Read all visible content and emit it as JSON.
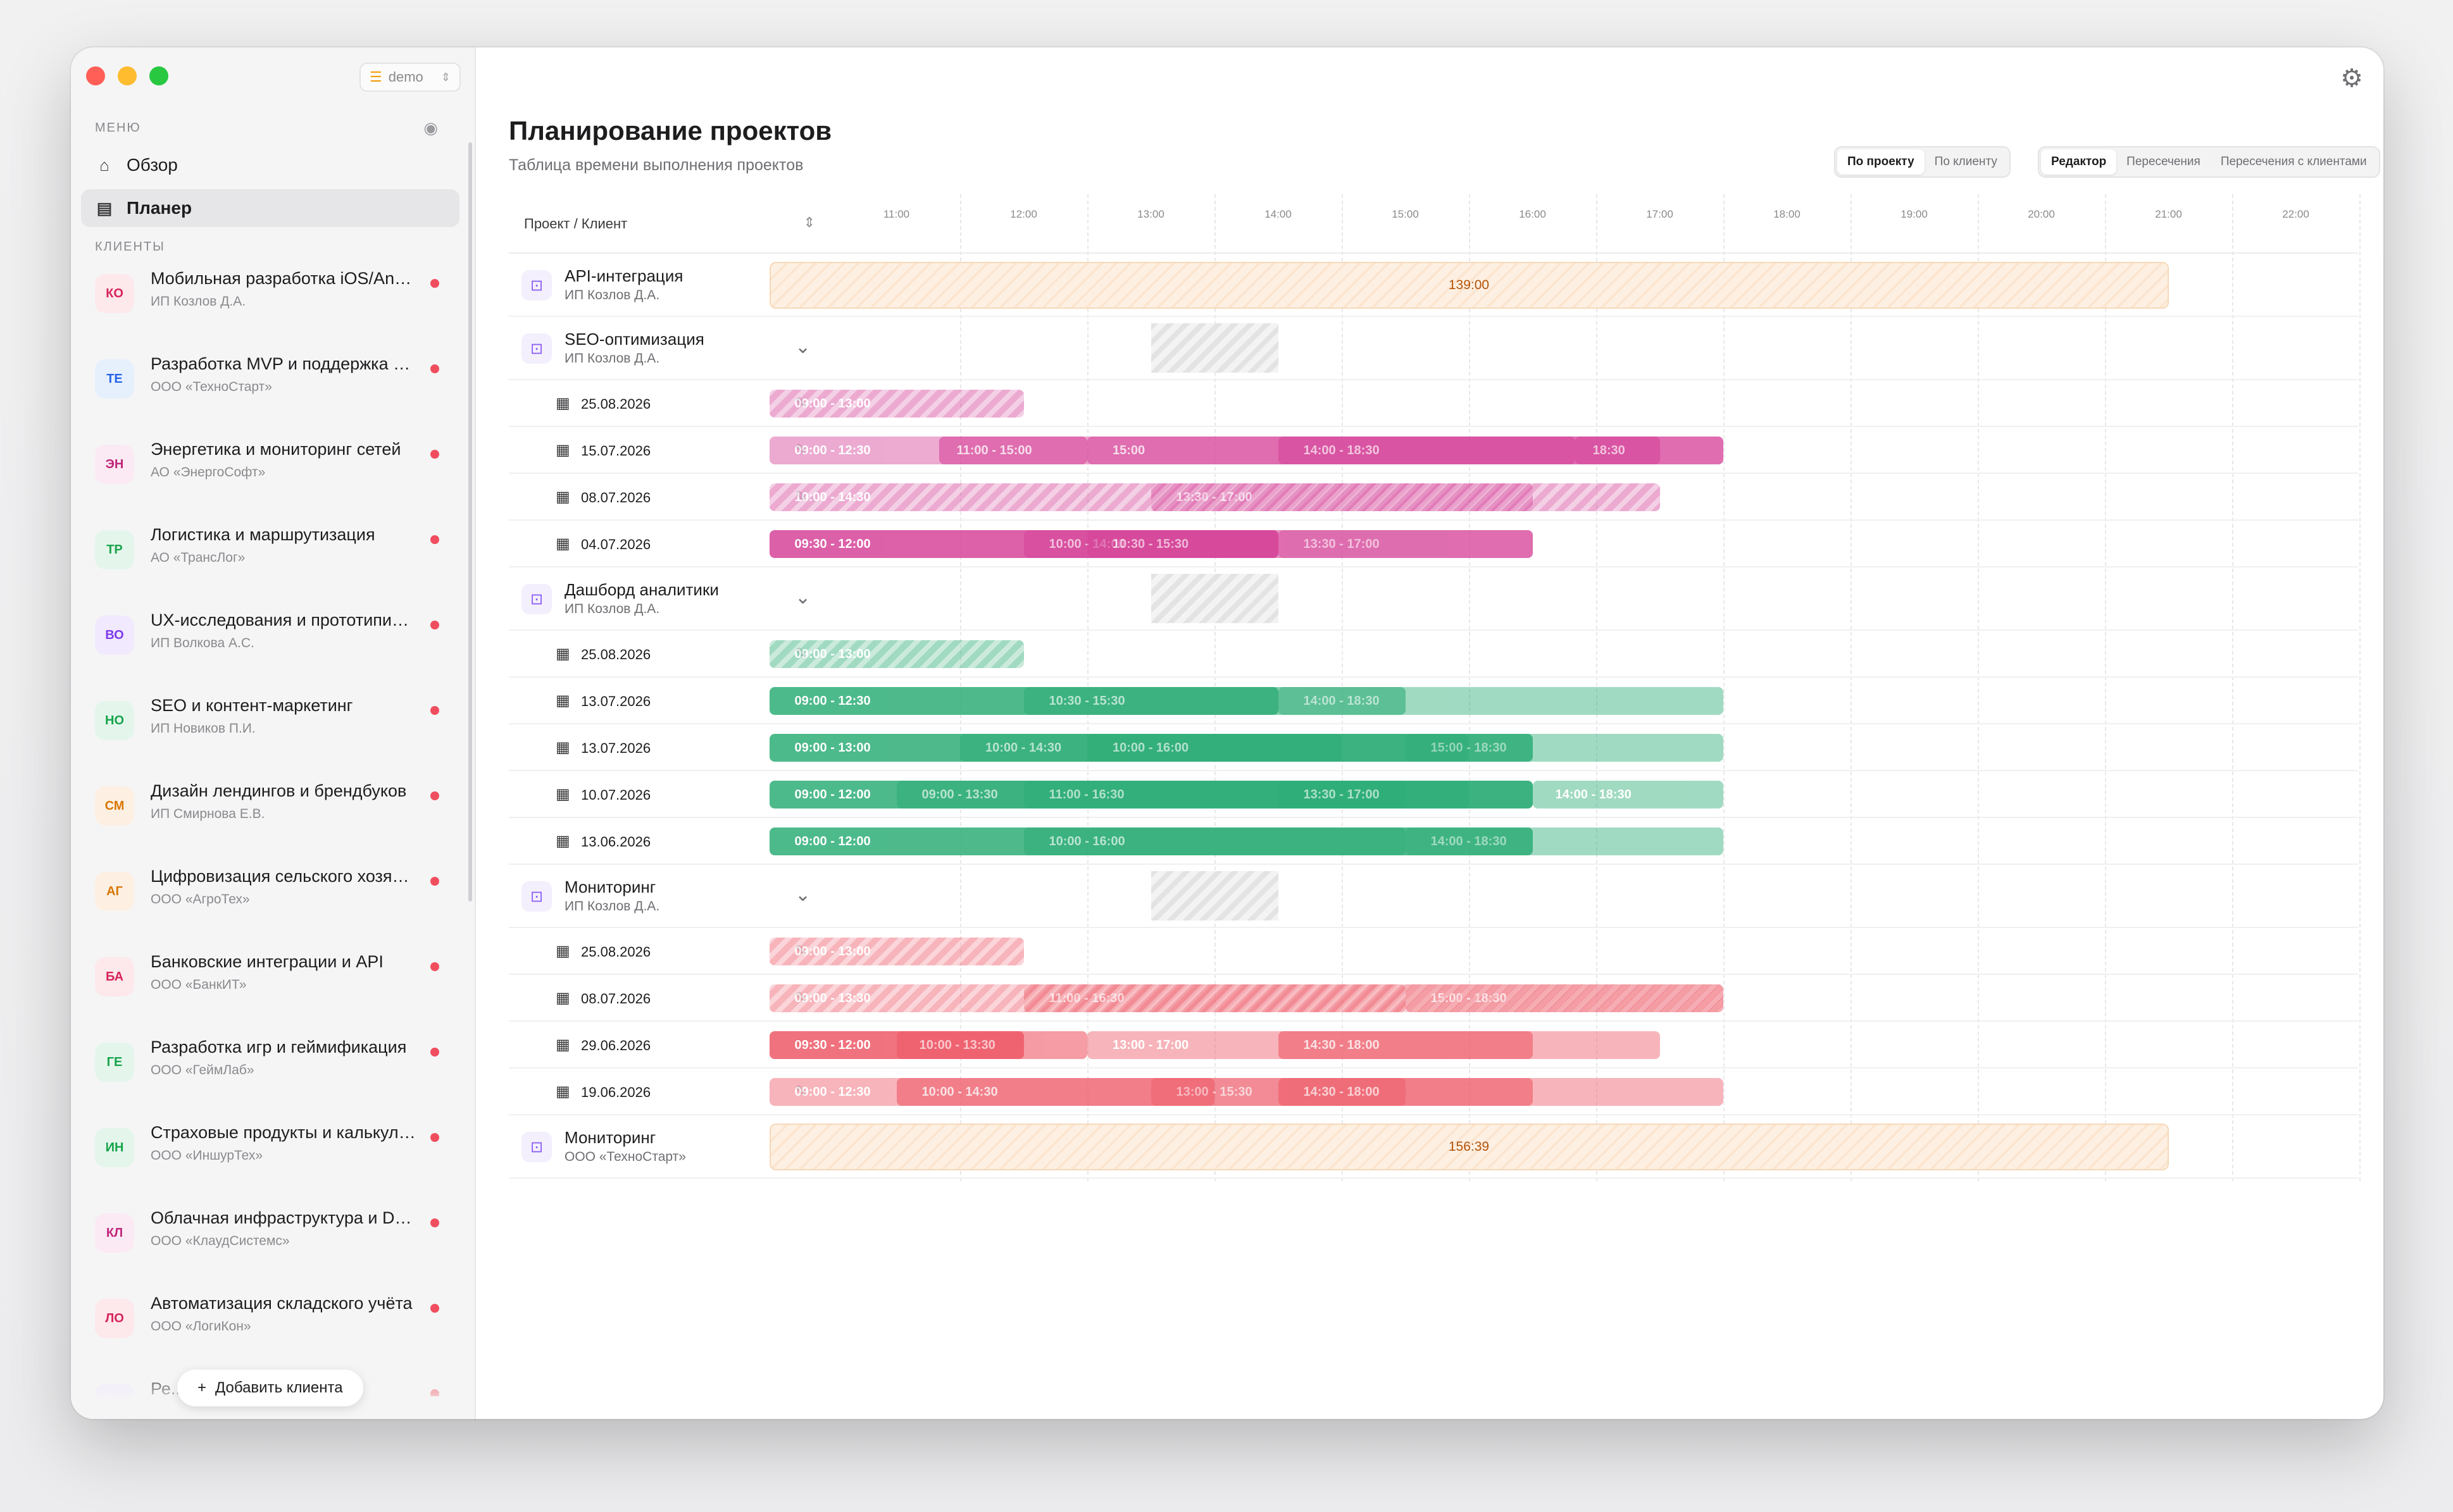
{
  "workspace": {
    "label": "demo",
    "icon": "database-icon"
  },
  "sidebar": {
    "menu_label": "МЕНЮ",
    "nav": [
      {
        "label": "Обзор",
        "icon": "home-icon",
        "active": false
      },
      {
        "label": "Планер",
        "icon": "list-icon",
        "active": true
      }
    ],
    "clients_label": "КЛИЕНТЫ",
    "clients": [
      {
        "initials": "КО",
        "title": "Мобильная разработка iOS/Android",
        "subtitle": "ИП Козлов Д.А.",
        "bg": "#fde8ec",
        "fg": "#d6245b"
      },
      {
        "initials": "ТЕ",
        "title": "Разработка MVP и поддержка продукта",
        "subtitle": "ООО «ТехноСтарт»",
        "bg": "#e6f0fd",
        "fg": "#2563eb"
      },
      {
        "initials": "ЭН",
        "title": "Энергетика и мониторинг сетей",
        "subtitle": "АО «ЭнергоСофт»",
        "bg": "#fbeaf3",
        "fg": "#c0267b"
      },
      {
        "initials": "ТР",
        "title": "Логистика и маршрутизация",
        "subtitle": "АО «ТрансЛог»",
        "bg": "#e4f6ec",
        "fg": "#16a34a"
      },
      {
        "initials": "ВО",
        "title": "UX-исследования и прототипирование",
        "subtitle": "ИП Волкова А.С.",
        "bg": "#f1e9fd",
        "fg": "#7c3aed"
      },
      {
        "initials": "НО",
        "title": "SEO и контент-маркетинг",
        "subtitle": "ИП Новиков П.И.",
        "bg": "#e4f6ec",
        "fg": "#16a34a"
      },
      {
        "initials": "СМ",
        "title": "Дизайн лендингов и брендбуков",
        "subtitle": "ИП Смирнова Е.В.",
        "bg": "#fdf0e3",
        "fg": "#d97706"
      },
      {
        "initials": "АГ",
        "title": "Цифровизация сельского хозяйства",
        "subtitle": "ООО «АгроТех»",
        "bg": "#fdf0e3",
        "fg": "#d97706"
      },
      {
        "initials": "БА",
        "title": "Банковские интеграции и API",
        "subtitle": "ООО «БанкИТ»",
        "bg": "#fde8ec",
        "fg": "#d6245b"
      },
      {
        "initials": "ГЕ",
        "title": "Разработка игр и геймификация",
        "subtitle": "ООО «ГеймЛаб»",
        "bg": "#e4f6ec",
        "fg": "#16a34a"
      },
      {
        "initials": "ИН",
        "title": "Страховые продукты и калькуляторы",
        "subtitle": "ООО «ИншурТех»",
        "bg": "#e4f6ec",
        "fg": "#16a34a"
      },
      {
        "initials": "КЛ",
        "title": "Облачная инфраструктура и DevOps",
        "subtitle": "ООО «КлаудСистемс»",
        "bg": "#fbeaf3",
        "fg": "#c0267b"
      },
      {
        "initials": "ЛО",
        "title": "Автоматизация складского учёта",
        "subtitle": "ООО «ЛогиКон»",
        "bg": "#fde8ec",
        "fg": "#d6245b"
      },
      {
        "initials": "",
        "title": "Ре... нали...",
        "subtitle": "",
        "bg": "#f1e9fd",
        "fg": "#7c3aed"
      }
    ],
    "add_client_label": "Добавить клиента"
  },
  "header": {
    "title": "Планирование проектов",
    "subtitle": "Таблица времени выполнения проектов",
    "group_toggle": [
      {
        "label": "По проекту",
        "active": true
      },
      {
        "label": "По клиенту",
        "active": false
      }
    ],
    "view_toggle": [
      {
        "label": "Редактор",
        "active": true
      },
      {
        "label": "Пересечения",
        "active": false
      },
      {
        "label": "Пересечения с клиентами",
        "active": false
      }
    ]
  },
  "grid": {
    "column_header": "Проект / Клиент",
    "hours": [
      "11:00",
      "12:00",
      "13:00",
      "14:00",
      "15:00",
      "16:00",
      "17:00",
      "18:00",
      "19:00",
      "20:00",
      "21:00",
      "22:00"
    ],
    "colors": {
      "pink": "#d6459a",
      "green": "#2fae78",
      "red": "#ee5a68",
      "total": "#fdf0e3"
    },
    "rows": [
      {
        "kind": "project",
        "title": "API-интеграция",
        "client": "ИП Козлов Д.А.",
        "expanded": false,
        "total": "139:00"
      },
      {
        "kind": "project",
        "title": "SEO-оптимизация",
        "client": "ИП Козлов Д.А.",
        "expanded": true
      },
      {
        "kind": "date",
        "date": "25.08.2026",
        "color": "pink",
        "segments": [
          {
            "from": "10:00",
            "to": "12:00",
            "label": "09:00 - 13:00",
            "planned": true
          }
        ]
      },
      {
        "kind": "date",
        "date": "15.07.2026",
        "color": "pink",
        "segments": [
          {
            "from": "10:00",
            "to": "17:30",
            "label": "09:00 - 12:30",
            "dim": true
          },
          {
            "from": "11:20",
            "to": "12:30",
            "label": "11:00 - 15:00"
          },
          {
            "from": "12:30",
            "to": "16:20",
            "label": "15:00"
          },
          {
            "from": "14:00",
            "to": "17:00",
            "label": "14:00 - 18:30"
          },
          {
            "from": "16:20",
            "to": "17:30",
            "label": "18:30"
          }
        ]
      },
      {
        "kind": "date",
        "date": "08.07.2026",
        "color": "pink",
        "segments": [
          {
            "from": "10:00",
            "to": "17:00",
            "label": "10:00 - 14:30",
            "planned": true
          },
          {
            "from": "13:00",
            "to": "16:00",
            "label": "13:30 - 17:00",
            "planned": true
          }
        ]
      },
      {
        "kind": "date",
        "date": "04.07.2026",
        "color": "pink",
        "segments": [
          {
            "from": "10:00",
            "to": "14:00",
            "label": "09:30 - 12:00"
          },
          {
            "from": "12:00",
            "to": "14:00",
            "label": "10:00 - 14:00"
          },
          {
            "from": "12:30",
            "to": "16:00",
            "label": "10:30 - 15:30"
          },
          {
            "from": "14:00",
            "to": "16:00",
            "label": "13:30 - 17:00",
            "dim": true
          }
        ]
      },
      {
        "kind": "project",
        "title": "Дашборд аналитики",
        "client": "ИП Козлов Д.А.",
        "expanded": true
      },
      {
        "kind": "date",
        "date": "25.08.2026",
        "color": "green",
        "segments": [
          {
            "from": "10:00",
            "to": "12:00",
            "label": "09:00 - 13:00",
            "planned": true
          }
        ]
      },
      {
        "kind": "date",
        "date": "13.07.2026",
        "color": "green",
        "segments": [
          {
            "from": "10:00",
            "to": "14:00",
            "label": "09:00 - 12:30"
          },
          {
            "from": "12:00",
            "to": "15:00",
            "label": "10:30 - 15:30"
          },
          {
            "from": "14:00",
            "to": "17:30",
            "label": "14:00 - 18:30",
            "dim": true
          }
        ]
      },
      {
        "kind": "date",
        "date": "13.07.2026",
        "color": "green",
        "segments": [
          {
            "from": "10:00",
            "to": "16:00",
            "label": "09:00 - 13:00"
          },
          {
            "from": "11:30",
            "to": "14:30",
            "label": "10:00 - 14:30"
          },
          {
            "from": "12:30",
            "to": "15:30",
            "label": "10:00 - 16:00"
          },
          {
            "from": "15:00",
            "to": "17:30",
            "label": "15:00 - 18:30",
            "dim": true
          }
        ]
      },
      {
        "kind": "date",
        "date": "10.07.2026",
        "color": "green",
        "segments": [
          {
            "from": "10:00",
            "to": "16:00",
            "label": "09:00 - 12:00"
          },
          {
            "from": "11:00",
            "to": "15:00",
            "label": "09:00 - 13:30"
          },
          {
            "from": "12:00",
            "to": "15:30",
            "label": "11:00 - 16:30"
          },
          {
            "from": "14:00",
            "to": "16:00",
            "label": "13:30 - 17:00"
          },
          {
            "from": "16:00",
            "to": "17:30",
            "label": "14:00 - 18:30",
            "dim": true
          }
        ]
      },
      {
        "kind": "date",
        "date": "13.06.2026",
        "color": "green",
        "segments": [
          {
            "from": "10:00",
            "to": "16:00",
            "label": "09:00 - 12:00"
          },
          {
            "from": "12:00",
            "to": "15:00",
            "label": "10:00 - 16:00"
          },
          {
            "from": "15:00",
            "to": "17:30",
            "label": "14:00 - 18:30",
            "dim": true
          }
        ]
      },
      {
        "kind": "project",
        "title": "Мониторинг",
        "client": "ИП Козлов Д.А.",
        "expanded": true
      },
      {
        "kind": "date",
        "date": "25.08.2026",
        "color": "red",
        "segments": [
          {
            "from": "10:00",
            "to": "12:00",
            "label": "09:00 - 13:00",
            "planned": true
          }
        ]
      },
      {
        "kind": "date",
        "date": "08.07.2026",
        "color": "red",
        "segments": [
          {
            "from": "10:00",
            "to": "17:30",
            "label": "09:00 - 13:30",
            "planned": true
          },
          {
            "from": "12:00",
            "to": "15:00",
            "label": "11:00 - 16:30",
            "planned": true
          },
          {
            "from": "15:00",
            "to": "17:30",
            "label": "15:00 - 18:30",
            "planned": true
          }
        ]
      },
      {
        "kind": "date",
        "date": "29.06.2026",
        "color": "red",
        "segments": [
          {
            "from": "10:00",
            "to": "12:00",
            "label": "09:30 - 12:00"
          },
          {
            "from": "11:00",
            "to": "12:30",
            "label": "10:00 - 13:30"
          },
          {
            "from": "12:30",
            "to": "17:00",
            "label": "13:00 - 17:00",
            "dim": true
          },
          {
            "from": "14:00",
            "to": "16:00",
            "label": "14:30 - 18:00"
          }
        ]
      },
      {
        "kind": "date",
        "date": "19.06.2026",
        "color": "red",
        "segments": [
          {
            "from": "10:00",
            "to": "17:30",
            "label": "09:00 - 12:30",
            "dim": true
          },
          {
            "from": "11:00",
            "to": "13:30",
            "label": "10:00 - 14:30"
          },
          {
            "from": "13:00",
            "to": "15:00",
            "label": "13:00 - 15:30",
            "dim": true
          },
          {
            "from": "14:00",
            "to": "16:00",
            "label": "14:30 - 18:00"
          }
        ]
      },
      {
        "kind": "project",
        "title": "Мониторинг",
        "client": "ООО «ТехноСтарт»",
        "expanded": false,
        "total": "156:39"
      }
    ]
  }
}
